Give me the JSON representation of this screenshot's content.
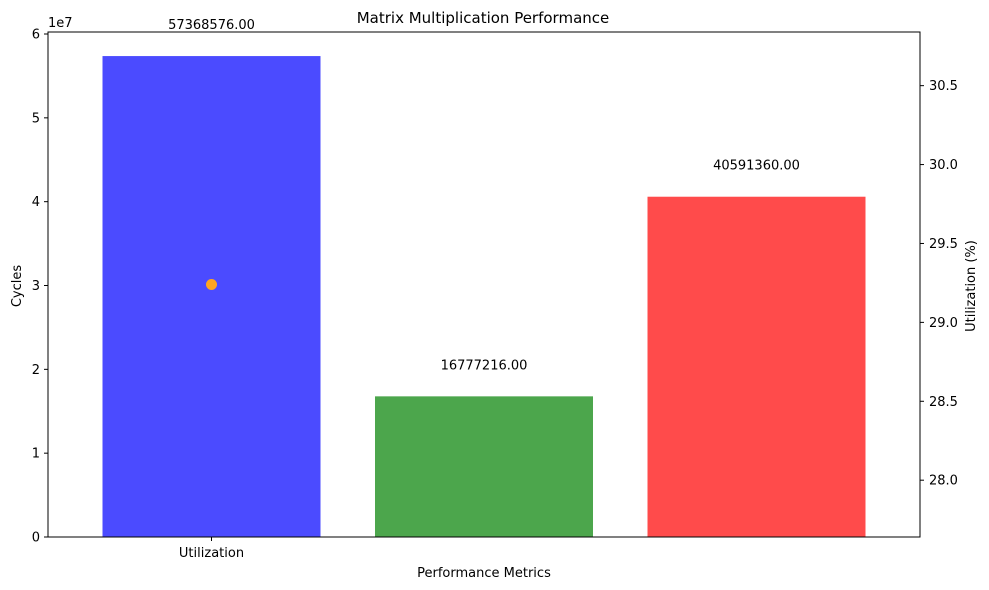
{
  "chart_data": {
    "type": "bar",
    "title": "Matrix Multiplication Performance",
    "xlabel": "Performance Metrics",
    "ylabel": "Cycles",
    "y2label": "Utilization (%)",
    "y_offset_label": "1e7",
    "categories": [
      "Utilization"
    ],
    "x_ticks": [
      0
    ],
    "bars": [
      {
        "x": 0,
        "value": 57368576,
        "label": "57368576.00",
        "color": "#4b4bff"
      },
      {
        "x": 1,
        "value": 16777216,
        "label": "16777216.00",
        "color": "#4ca64c"
      },
      {
        "x": 2,
        "value": 40591360,
        "label": "40591360.00",
        "color": "#ff4b4b"
      }
    ],
    "point": {
      "x": 0,
      "value": 29.24,
      "color": "#ffa51f"
    },
    "xlim": [
      -0.6,
      2.6
    ],
    "ylim": [
      0,
      60240000
    ],
    "y_ticks": [
      0,
      10000000,
      20000000,
      30000000,
      40000000,
      50000000,
      60000000
    ],
    "y_tick_labels": [
      "0",
      "1",
      "2",
      "3",
      "4",
      "5",
      "6"
    ],
    "y2lim": [
      27.64,
      30.84
    ],
    "y2_ticks": [
      28.0,
      28.5,
      29.0,
      29.5,
      30.0,
      30.5
    ],
    "y2_tick_labels": [
      "28.0",
      "28.5",
      "29.0",
      "29.5",
      "30.0",
      "30.5"
    ],
    "grid": false
  }
}
